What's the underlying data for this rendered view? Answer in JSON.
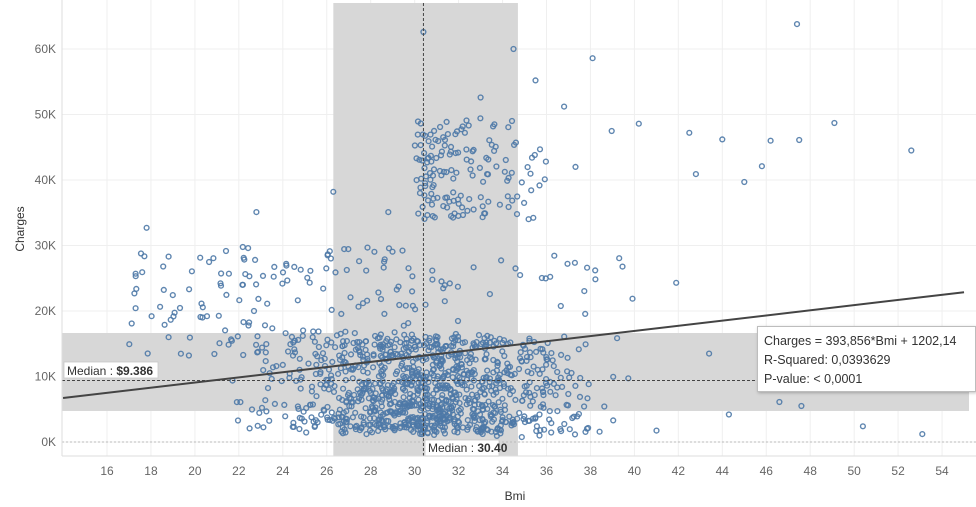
{
  "chart_data": {
    "type": "scatter",
    "xlabel": "Bmi",
    "ylabel": "Charges",
    "xlim": [
      14,
      55
    ],
    "ylim": [
      -2000,
      67000
    ],
    "x_ticks": [
      "16",
      "18",
      "20",
      "22",
      "24",
      "26",
      "28",
      "30",
      "32",
      "34",
      "36",
      "38",
      "40",
      "42",
      "44",
      "46",
      "48",
      "50",
      "52",
      "54"
    ],
    "y_ticks": [
      "0K",
      "10K",
      "20K",
      "30K",
      "40K",
      "50K",
      "60K"
    ],
    "grid": true,
    "marker_color": "#4e79a7",
    "band_color": "#d7d7d7",
    "bands": {
      "x_range": [
        26.3,
        34.7
      ],
      "y_range": [
        4740,
        16640
      ]
    },
    "median_x": {
      "label": "Median",
      "value_text": "30.40",
      "value": 30.4
    },
    "median_y": {
      "label": "Median",
      "value_text": "$9.386",
      "value": 9386
    },
    "trend": {
      "slope": 393.856,
      "intercept": 1202.14
    },
    "tooltip": {
      "line1": "Charges = 393,856*Bmi + 1202,14",
      "line2": "R-Squared: 0,0393629",
      "line3": "P-value: < 0,0001"
    },
    "highlights": [
      [
        47.4,
        63800
      ],
      [
        34.5,
        60000
      ],
      [
        30.4,
        62600
      ],
      [
        38.1,
        58600
      ],
      [
        35.5,
        55200
      ],
      [
        36.8,
        51200
      ],
      [
        33,
        52600
      ],
      [
        47.5,
        46100
      ],
      [
        52.6,
        44500
      ],
      [
        46.2,
        46000
      ],
      [
        45.8,
        42100
      ],
      [
        45,
        39700
      ],
      [
        49.1,
        48700
      ],
      [
        42.5,
        47200
      ],
      [
        17.8,
        32700
      ],
      [
        22.8,
        35100
      ],
      [
        26.3,
        38200
      ],
      [
        28.8,
        35100
      ],
      [
        30.3,
        40200
      ],
      [
        31.6,
        43900
      ],
      [
        40.2,
        48600
      ],
      [
        41.9,
        24300
      ],
      [
        42.8,
        40900
      ],
      [
        44,
        46200
      ],
      [
        50.4,
        2400
      ],
      [
        53.1,
        1200
      ],
      [
        47.6,
        5500
      ],
      [
        43.4,
        13500
      ],
      [
        44.3,
        4200
      ],
      [
        46.6,
        6100
      ]
    ]
  }
}
